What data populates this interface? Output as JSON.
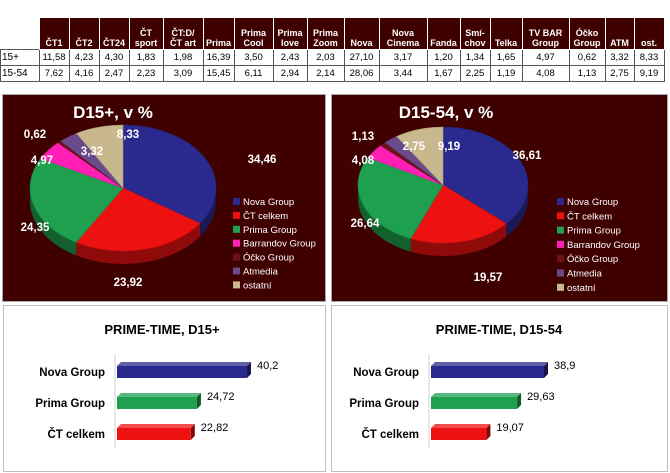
{
  "table": {
    "columns": [
      "ČT1",
      "ČT2",
      "ČT24",
      "ČT\nsport",
      "ČT:D/\nČT art",
      "Prima",
      "Prima\nCool",
      "Prima\nlove",
      "Prima\nZoom",
      "Nova",
      "Nova\nCinema",
      "Fanda",
      "Smí-\nchov",
      "Telka",
      "TV BAR\nGroup",
      "Óčko\nGroup",
      "ATM",
      "ost."
    ],
    "rows": [
      {
        "label": "15+",
        "values": [
          "11,58",
          "4,23",
          "4,30",
          "1,83",
          "1,98",
          "16,39",
          "3,50",
          "2,43",
          "2,03",
          "27,10",
          "3,17",
          "1,20",
          "1,34",
          "1,65",
          "4,97",
          "0,62",
          "3,32",
          "8,33"
        ]
      },
      {
        "label": "15-54",
        "values": [
          "7,62",
          "4,16",
          "2,47",
          "2,23",
          "3,09",
          "15,45",
          "6,11",
          "2,94",
          "2,14",
          "28,06",
          "3,44",
          "1,67",
          "2,25",
          "1,19",
          "4,08",
          "1,13",
          "2,75",
          "9,19"
        ]
      }
    ]
  },
  "chart_data": [
    {
      "type": "pie",
      "title": "D15+, v %",
      "categories": [
        "Nova Group",
        "ČT celkem",
        "Prima Group",
        "Barrandov Group",
        "Óčko Group",
        "Atmedia",
        "ostatní"
      ],
      "values": [
        34.46,
        23.92,
        24.35,
        4.97,
        0.62,
        3.32,
        8.33
      ],
      "labels": [
        "34,46",
        "23,92",
        "24,35",
        "4,97",
        "0,62",
        "3,32",
        "8,33"
      ],
      "colors": [
        "#2a2a8e",
        "#ee1111",
        "#1fa04f",
        "#ff1fb4",
        "#6b1218",
        "#6a4a8a",
        "#c9b78e"
      ],
      "legend_position": "right"
    },
    {
      "type": "pie",
      "title": "D15-54, v %",
      "categories": [
        "Nova Group",
        "ČT celkem",
        "Prima Group",
        "Barrandov Group",
        "Óčko Group",
        "Atmedia",
        "ostatní"
      ],
      "values": [
        36.61,
        19.57,
        26.64,
        4.08,
        1.13,
        2.75,
        9.19
      ],
      "labels": [
        "36,61",
        "19,57",
        "26,64",
        "4,08",
        "1,13",
        "2,75",
        "9,19"
      ],
      "colors": [
        "#2a2a8e",
        "#ee1111",
        "#1fa04f",
        "#ff1fb4",
        "#6b1218",
        "#6a4a8a",
        "#c9b78e"
      ],
      "legend_position": "right"
    },
    {
      "type": "bar",
      "orientation": "horizontal",
      "title": "PRIME-TIME, D15+",
      "categories": [
        "Nova Group",
        "Prima Group",
        "ČT celkem"
      ],
      "values": [
        40.2,
        24.72,
        22.82
      ],
      "labels": [
        "40,2",
        "24,72",
        "22,82"
      ],
      "colors": [
        "#2a2a8e",
        "#1fa04f",
        "#ee1111"
      ],
      "xlim": [
        0,
        40.2
      ]
    },
    {
      "type": "bar",
      "orientation": "horizontal",
      "title": "PRIME-TIME, D15-54",
      "categories": [
        "Nova Group",
        "Prima Group",
        "ČT celkem"
      ],
      "values": [
        38.9,
        29.63,
        19.07
      ],
      "labels": [
        "38,9",
        "29,63",
        "19,07"
      ],
      "colors": [
        "#2a2a8e",
        "#1fa04f",
        "#ee1111"
      ],
      "xlim": [
        0,
        40.2
      ]
    }
  ]
}
